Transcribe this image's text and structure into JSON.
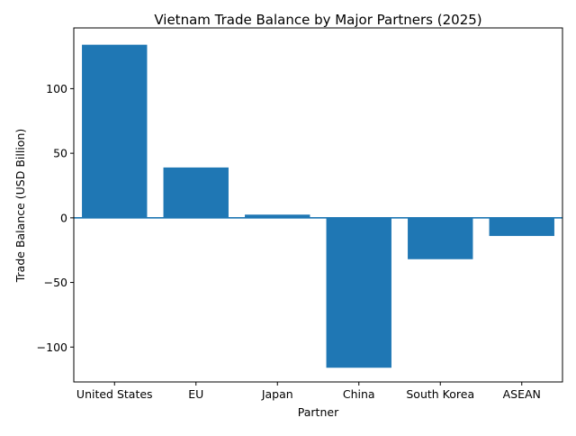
{
  "chart_data": {
    "type": "bar",
    "title": "Vietnam Trade Balance by Major Partners (2025)",
    "xlabel": "Partner",
    "ylabel": "Trade Balance (USD Billion)",
    "categories": [
      "United States",
      "EU",
      "Japan",
      "China",
      "South Korea",
      "ASEAN"
    ],
    "values": [
      134,
      39,
      2.5,
      -116,
      -32,
      -14
    ],
    "ylim": [
      -127,
      147
    ],
    "yticks": [
      -100,
      -50,
      0,
      50,
      100
    ],
    "ytick_labels": [
      "−100",
      "−50",
      "0",
      "50",
      "100"
    ],
    "zero_line": true,
    "grid": false,
    "legend": "none",
    "bar_color": "#1f77b4",
    "axis_color": "#000000"
  }
}
